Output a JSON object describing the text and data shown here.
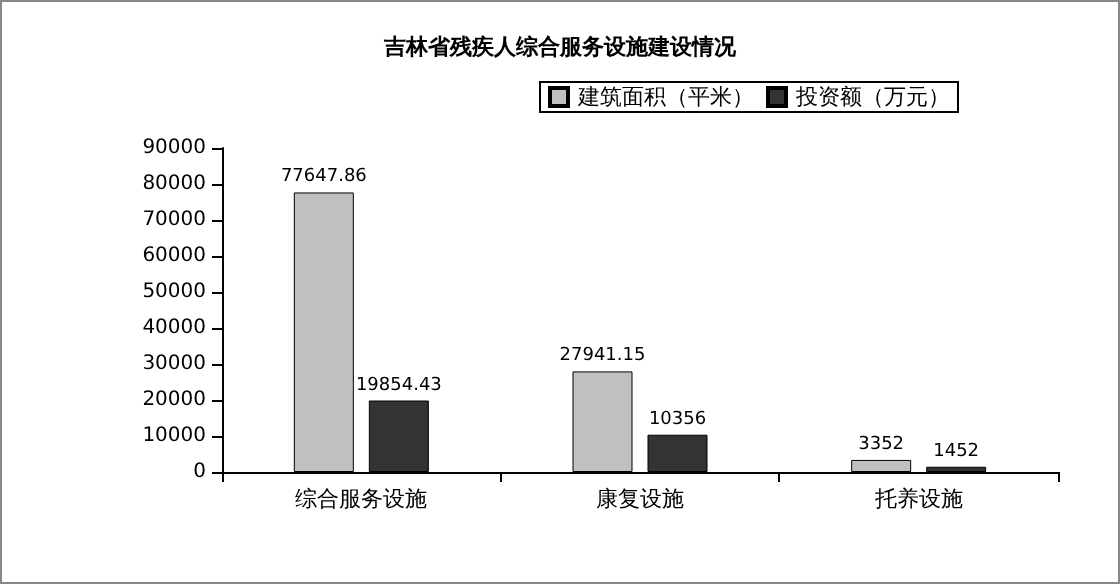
{
  "chart_data": {
    "type": "bar",
    "title": "吉林省残疾人综合服务设施建设情况",
    "categories": [
      "综合服务设施",
      "康复设施",
      "托养设施"
    ],
    "series": [
      {
        "name": "建筑面积（平米）",
        "color": "#c0c0c0",
        "values": [
          77647.86,
          27941.15,
          3352
        ]
      },
      {
        "name": "投资额（万元）",
        "color": "#333333",
        "values": [
          19854.43,
          10356,
          1452
        ]
      }
    ],
    "ylim": [
      0,
      90000
    ],
    "yticks": [
      0,
      10000,
      20000,
      30000,
      40000,
      50000,
      60000,
      70000,
      80000,
      90000
    ],
    "grid": false,
    "legend": "top right",
    "data_labels": true
  }
}
